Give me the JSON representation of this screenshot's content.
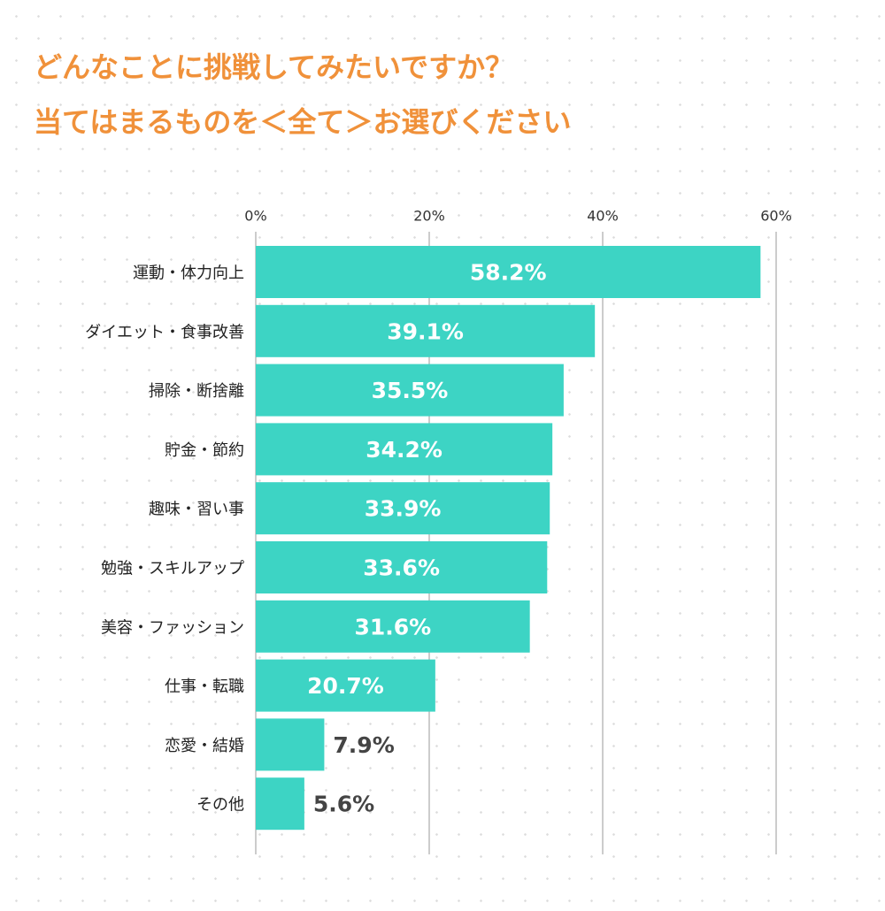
{
  "chart_data": {
    "type": "hbar",
    "title": [
      "どんなことに挑戦してみたいですか？",
      "当てはまるものを＜全て＞お選びください"
    ],
    "categories": [
      "運動・体力向上",
      "ダイエット・食事改善",
      "掃除・断捨離",
      "貯金・節約",
      "趣味・習い事",
      "勉強・スキルアップ",
      "美容・ファッション",
      "仕事・転職",
      "恋愛・結婚",
      "その他"
    ],
    "values": [
      58.2,
      39.1,
      35.5,
      34.2,
      33.9,
      33.6,
      31.6,
      20.7,
      7.9,
      5.6
    ],
    "value_labels": [
      "58.2%",
      "39.1%",
      "35.5%",
      "34.2%",
      "33.9%",
      "33.6%",
      "31.6%",
      "20.7%",
      "7.9%",
      "5.6%"
    ],
    "color": "#3dd4c4",
    "xlim": [
      0,
      60
    ],
    "xticks": [
      {
        "value": 0,
        "label": "0%"
      },
      {
        "value": 20,
        "label": "20%"
      },
      {
        "value": 40,
        "label": "40%"
      },
      {
        "value": 60,
        "label": "60%"
      }
    ],
    "grid": true
  }
}
